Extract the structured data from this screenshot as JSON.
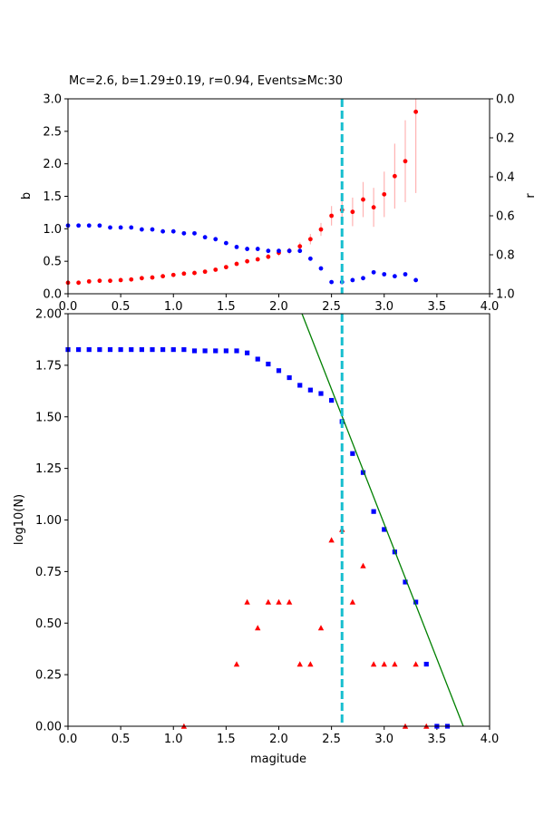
{
  "chart_data": [
    {
      "type": "scatter",
      "title": "Mc=2.6, b=1.29±0.19, r=0.94, Events≥Mc:30",
      "xlabel": "",
      "ylabel": "b",
      "ylabel_right": "r",
      "xlim": [
        0,
        4
      ],
      "ylim": [
        0,
        3
      ],
      "ylim_right": [
        1,
        0
      ],
      "x_ticks": [
        "0.0",
        "0.5",
        "1.0",
        "1.5",
        "2.0",
        "2.5",
        "3.0",
        "3.5",
        "4.0"
      ],
      "y_ticks": [
        "0.0",
        "0.5",
        "1.0",
        "1.5",
        "2.0",
        "2.5",
        "3.0"
      ],
      "y_ticks_right": [
        "0.0",
        "0.2",
        "0.4",
        "0.6",
        "0.8",
        "1.0"
      ],
      "mc_line": 2.6,
      "colors": {
        "b_series": "#ff0000",
        "b_error": "#ffb3b3",
        "r_series": "#0000ff",
        "mc_line": "#17becf"
      },
      "series": [
        {
          "id": "b_values",
          "axis": "left",
          "x": [
            0.0,
            0.1,
            0.2,
            0.3,
            0.4,
            0.5,
            0.6,
            0.7,
            0.8,
            0.9,
            1.0,
            1.1,
            1.2,
            1.3,
            1.4,
            1.5,
            1.6,
            1.7,
            1.8,
            1.9,
            2.0,
            2.1,
            2.2,
            2.3,
            2.4,
            2.5,
            2.6,
            2.7,
            2.8,
            2.9,
            3.0,
            3.1,
            3.2,
            3.3
          ],
          "y": [
            0.17,
            0.17,
            0.19,
            0.2,
            0.2,
            0.21,
            0.22,
            0.24,
            0.25,
            0.27,
            0.29,
            0.31,
            0.32,
            0.34,
            0.37,
            0.41,
            0.46,
            0.5,
            0.53,
            0.57,
            0.63,
            0.66,
            0.73,
            0.84,
            0.99,
            1.2,
            1.29,
            1.26,
            1.45,
            1.33,
            1.53,
            1.81,
            2.04,
            2.8
          ],
          "err": [
            0.01,
            0.01,
            0.01,
            0.01,
            0.01,
            0.01,
            0.01,
            0.01,
            0.01,
            0.01,
            0.01,
            0.02,
            0.02,
            0.02,
            0.02,
            0.02,
            0.03,
            0.03,
            0.03,
            0.04,
            0.05,
            0.05,
            0.06,
            0.08,
            0.1,
            0.15,
            0.19,
            0.22,
            0.27,
            0.3,
            0.35,
            0.5,
            0.63,
            1.25
          ]
        },
        {
          "id": "r_values",
          "axis": "right",
          "x": [
            0.0,
            0.1,
            0.2,
            0.3,
            0.4,
            0.5,
            0.6,
            0.7,
            0.8,
            0.9,
            1.0,
            1.1,
            1.2,
            1.3,
            1.4,
            1.5,
            1.6,
            1.7,
            1.8,
            1.9,
            2.0,
            2.1,
            2.2,
            2.3,
            2.4,
            2.5,
            2.6,
            2.7,
            2.8,
            2.9,
            3.0,
            3.1,
            3.2,
            3.3
          ],
          "y": [
            0.65,
            0.65,
            0.65,
            0.65,
            0.66,
            0.66,
            0.66,
            0.67,
            0.67,
            0.68,
            0.68,
            0.69,
            0.69,
            0.71,
            0.72,
            0.74,
            0.76,
            0.77,
            0.77,
            0.78,
            0.78,
            0.78,
            0.78,
            0.82,
            0.87,
            0.94,
            0.94,
            0.93,
            0.92,
            0.89,
            0.9,
            0.91,
            0.9,
            0.93
          ]
        }
      ]
    },
    {
      "type": "scatter",
      "title": "",
      "xlabel": "magitude",
      "ylabel": "log10(N)",
      "xlim": [
        0,
        4
      ],
      "ylim": [
        0,
        2
      ],
      "x_ticks": [
        "0.0",
        "0.5",
        "1.0",
        "1.5",
        "2.0",
        "2.5",
        "3.0",
        "3.5",
        "4.0"
      ],
      "y_ticks": [
        "0.00",
        "0.25",
        "0.50",
        "0.75",
        "1.00",
        "1.25",
        "1.50",
        "1.75",
        "2.00"
      ],
      "mc_line": 2.6,
      "colors": {
        "cumulative": "#0000ff",
        "noncumulative": "#ff0000",
        "fit": "#008000",
        "mc_line": "#17becf"
      },
      "series": [
        {
          "id": "cumulative",
          "marker": "square",
          "x": [
            0.0,
            0.1,
            0.2,
            0.3,
            0.4,
            0.5,
            0.6,
            0.7,
            0.8,
            0.9,
            1.0,
            1.1,
            1.2,
            1.3,
            1.4,
            1.5,
            1.6,
            1.7,
            1.8,
            1.9,
            2.0,
            2.1,
            2.2,
            2.3,
            2.4,
            2.5,
            2.6,
            2.7,
            2.8,
            2.9,
            3.0,
            3.1,
            3.2,
            3.3,
            3.4,
            3.5,
            3.6
          ],
          "y": [
            1.826,
            1.826,
            1.826,
            1.826,
            1.826,
            1.826,
            1.826,
            1.826,
            1.826,
            1.826,
            1.826,
            1.826,
            1.82,
            1.82,
            1.82,
            1.82,
            1.82,
            1.81,
            1.78,
            1.756,
            1.724,
            1.69,
            1.653,
            1.63,
            1.613,
            1.58,
            1.477,
            1.322,
            1.23,
            1.041,
            0.954,
            0.845,
            0.699,
            0.602,
            0.301,
            0.0,
            0.0
          ]
        },
        {
          "id": "noncumulative",
          "marker": "triangle",
          "x": [
            1.1,
            1.6,
            1.7,
            1.8,
            1.9,
            2.0,
            2.1,
            2.2,
            2.3,
            2.4,
            2.5,
            2.6,
            2.7,
            2.8,
            2.9,
            3.0,
            3.1,
            3.2,
            3.3,
            3.4
          ],
          "y": [
            0.0,
            0.301,
            0.602,
            0.477,
            0.602,
            0.602,
            0.602,
            0.301,
            0.301,
            0.477,
            0.903,
            0.954,
            0.602,
            0.778,
            0.301,
            0.301,
            0.301,
            0.0,
            0.301,
            0.0
          ]
        }
      ],
      "fit_line": {
        "x": [
          2.22,
          3.75
        ],
        "y": [
          2.0,
          0.0
        ]
      }
    }
  ]
}
